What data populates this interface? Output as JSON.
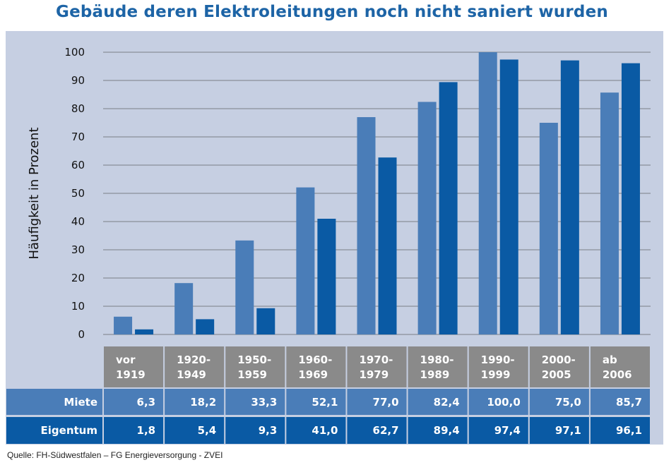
{
  "title": "Gebäude deren Elektroleitungen noch nicht saniert wurden",
  "source": "Quelle: FH-Südwestfalen – FG Energieversorgung - ZVEI",
  "colors": {
    "miete": "#4a7db8",
    "eigentum": "#0a5aa4",
    "panel": "#c6cfe2",
    "header_cell": "#8a8a8a",
    "gridline": "#7b7f87"
  },
  "chart_data": {
    "type": "bar",
    "title": "Gebäude deren Elektroleitungen noch nicht saniert wurden",
    "ylabel": "Häufigkeit in Prozent",
    "xlabel": "",
    "ylim": [
      0,
      100
    ],
    "yticks": [
      "0",
      "10",
      "20",
      "30",
      "40",
      "50",
      "60",
      "70",
      "80",
      "90",
      "100"
    ],
    "grid": true,
    "categories": [
      [
        "vor",
        "1919"
      ],
      [
        "1920-",
        "1949"
      ],
      [
        "1950-",
        "1959"
      ],
      [
        "1960-",
        "1969"
      ],
      [
        "1970-",
        "1979"
      ],
      [
        "1980-",
        "1989"
      ],
      [
        "1990-",
        "1999"
      ],
      [
        "2000-",
        "2005"
      ],
      [
        "ab",
        "2006"
      ]
    ],
    "series": [
      {
        "name": "Miete",
        "values": [
          6.3,
          18.2,
          33.3,
          52.1,
          77.0,
          82.4,
          100.0,
          75.0,
          85.7
        ],
        "labels": [
          "6,3",
          "18,2",
          "33,3",
          "52,1",
          "77,0",
          "82,4",
          "100,0",
          "75,0",
          "85,7"
        ]
      },
      {
        "name": "Eigentum",
        "values": [
          1.8,
          5.4,
          9.3,
          41.0,
          62.7,
          89.4,
          97.4,
          97.1,
          96.1
        ],
        "labels": [
          "1,8",
          "5,4",
          "9,3",
          "41,0",
          "62,7",
          "89,4",
          "97,4",
          "97,1",
          "96,1"
        ]
      }
    ]
  }
}
